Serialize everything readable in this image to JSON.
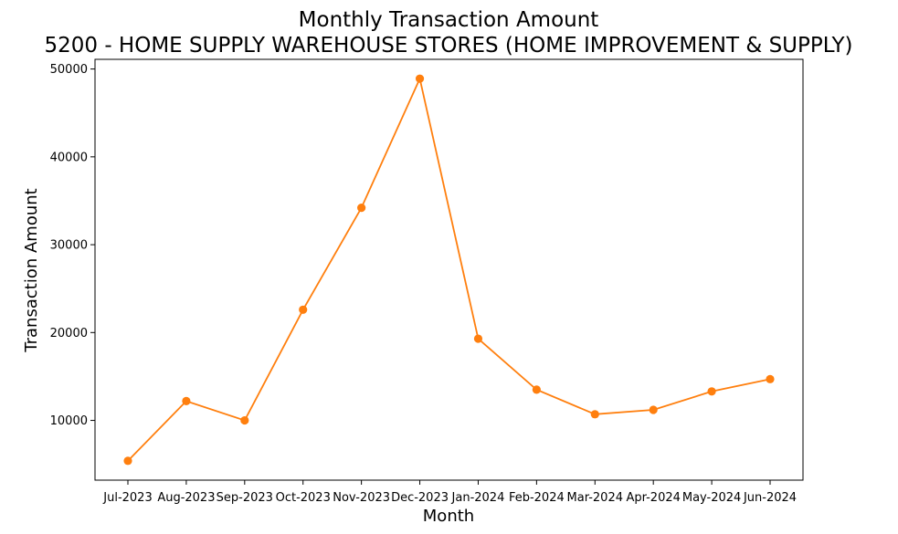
{
  "chart_data": {
    "type": "line",
    "title": "Monthly Transaction Amount",
    "subtitle": "5200 - HOME SUPPLY WAREHOUSE STORES (HOME IMPROVEMENT & SUPPLY)",
    "xlabel": "Month",
    "ylabel": "Transaction Amount",
    "categories": [
      "Jul-2023",
      "Aug-2023",
      "Sep-2023",
      "Oct-2023",
      "Nov-2023",
      "Dec-2023",
      "Jan-2024",
      "Feb-2024",
      "Mar-2024",
      "Apr-2024",
      "May-2024",
      "Jun-2024"
    ],
    "series": [
      {
        "values": [
          5400,
          12200,
          10000,
          22600,
          34200,
          48900,
          19300,
          13500,
          10700,
          11200,
          13300,
          14700
        ],
        "color": "#ff7f0e"
      }
    ],
    "ylim": [
      3200,
      51100
    ],
    "yticks": [
      10000,
      20000,
      30000,
      40000,
      50000
    ],
    "grid": false,
    "legend": "none"
  }
}
